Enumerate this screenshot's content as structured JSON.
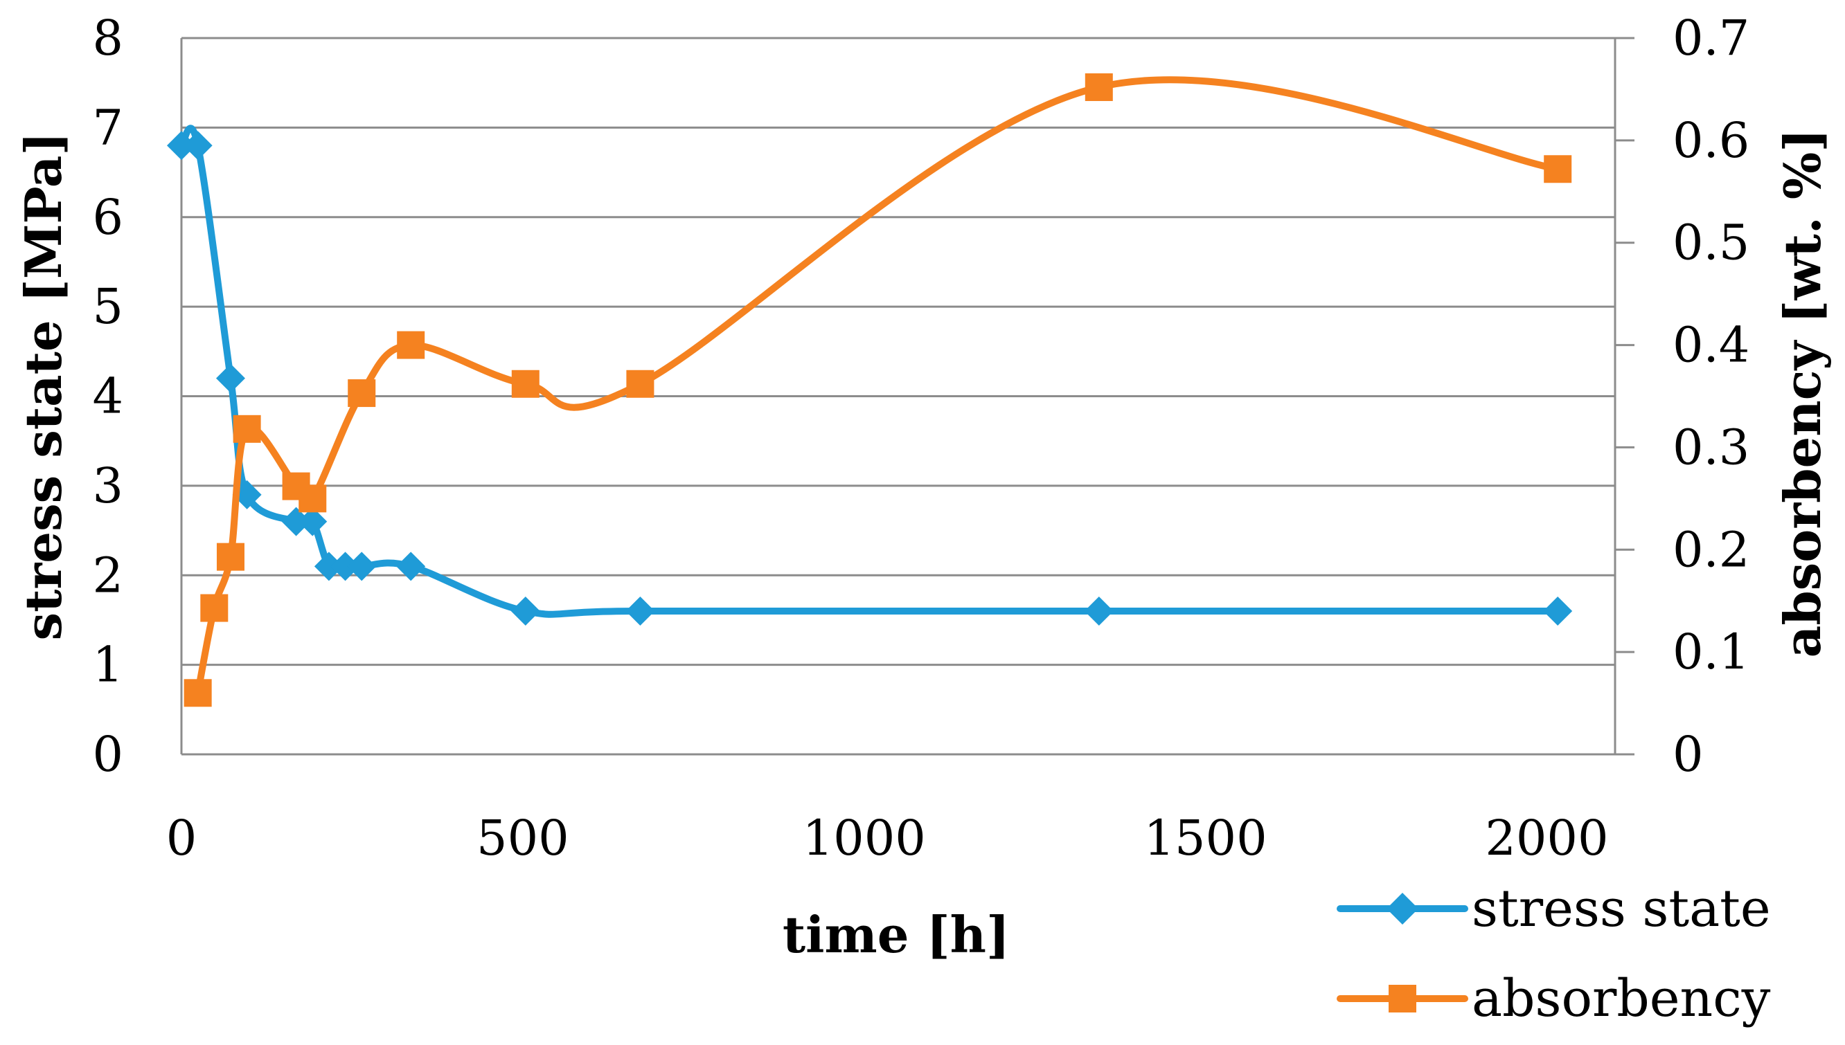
{
  "chart_data": {
    "type": "line",
    "title": "",
    "xlabel": "time [h]",
    "ylabel_left": "stress state [MPa]",
    "ylabel_right": "absorbency [wt. %]",
    "xlim": [
      0,
      2100
    ],
    "ylim_left": [
      0,
      8
    ],
    "ylim_right": [
      0,
      0.7
    ],
    "x_ticks": [
      "0",
      "500",
      "1000",
      "1500",
      "2000"
    ],
    "y_left_ticks": [
      "0",
      "1",
      "2",
      "3",
      "4",
      "5",
      "6",
      "7",
      "8"
    ],
    "y_right_ticks": [
      "0",
      "0.1",
      "0.2",
      "0.3",
      "0.4",
      "0.5",
      "0.6",
      "0.7"
    ],
    "grid": true,
    "legend_position": "bottom-right",
    "series": [
      {
        "name": "stress state",
        "axis": "left",
        "color": "#1f9bd7",
        "marker": "diamond",
        "smooth": true,
        "x": [
          0,
          24,
          72,
          96,
          168,
          192,
          216,
          240,
          264,
          336,
          504,
          672,
          1344,
          2016
        ],
        "values": [
          6.8,
          6.8,
          4.2,
          2.9,
          2.6,
          2.6,
          2.1,
          2.1,
          2.1,
          2.1,
          1.6,
          1.6,
          1.6,
          1.6
        ]
      },
      {
        "name": "absorbency",
        "axis": "right",
        "color": "#f58220",
        "marker": "square",
        "smooth": true,
        "x": [
          24,
          48,
          72,
          96,
          168,
          192,
          264,
          336,
          504,
          672,
          1344,
          2016
        ],
        "values": [
          0.06,
          0.143,
          0.193,
          0.318,
          0.262,
          0.25,
          0.353,
          0.4,
          0.362,
          0.362,
          0.652,
          0.572
        ]
      }
    ]
  }
}
